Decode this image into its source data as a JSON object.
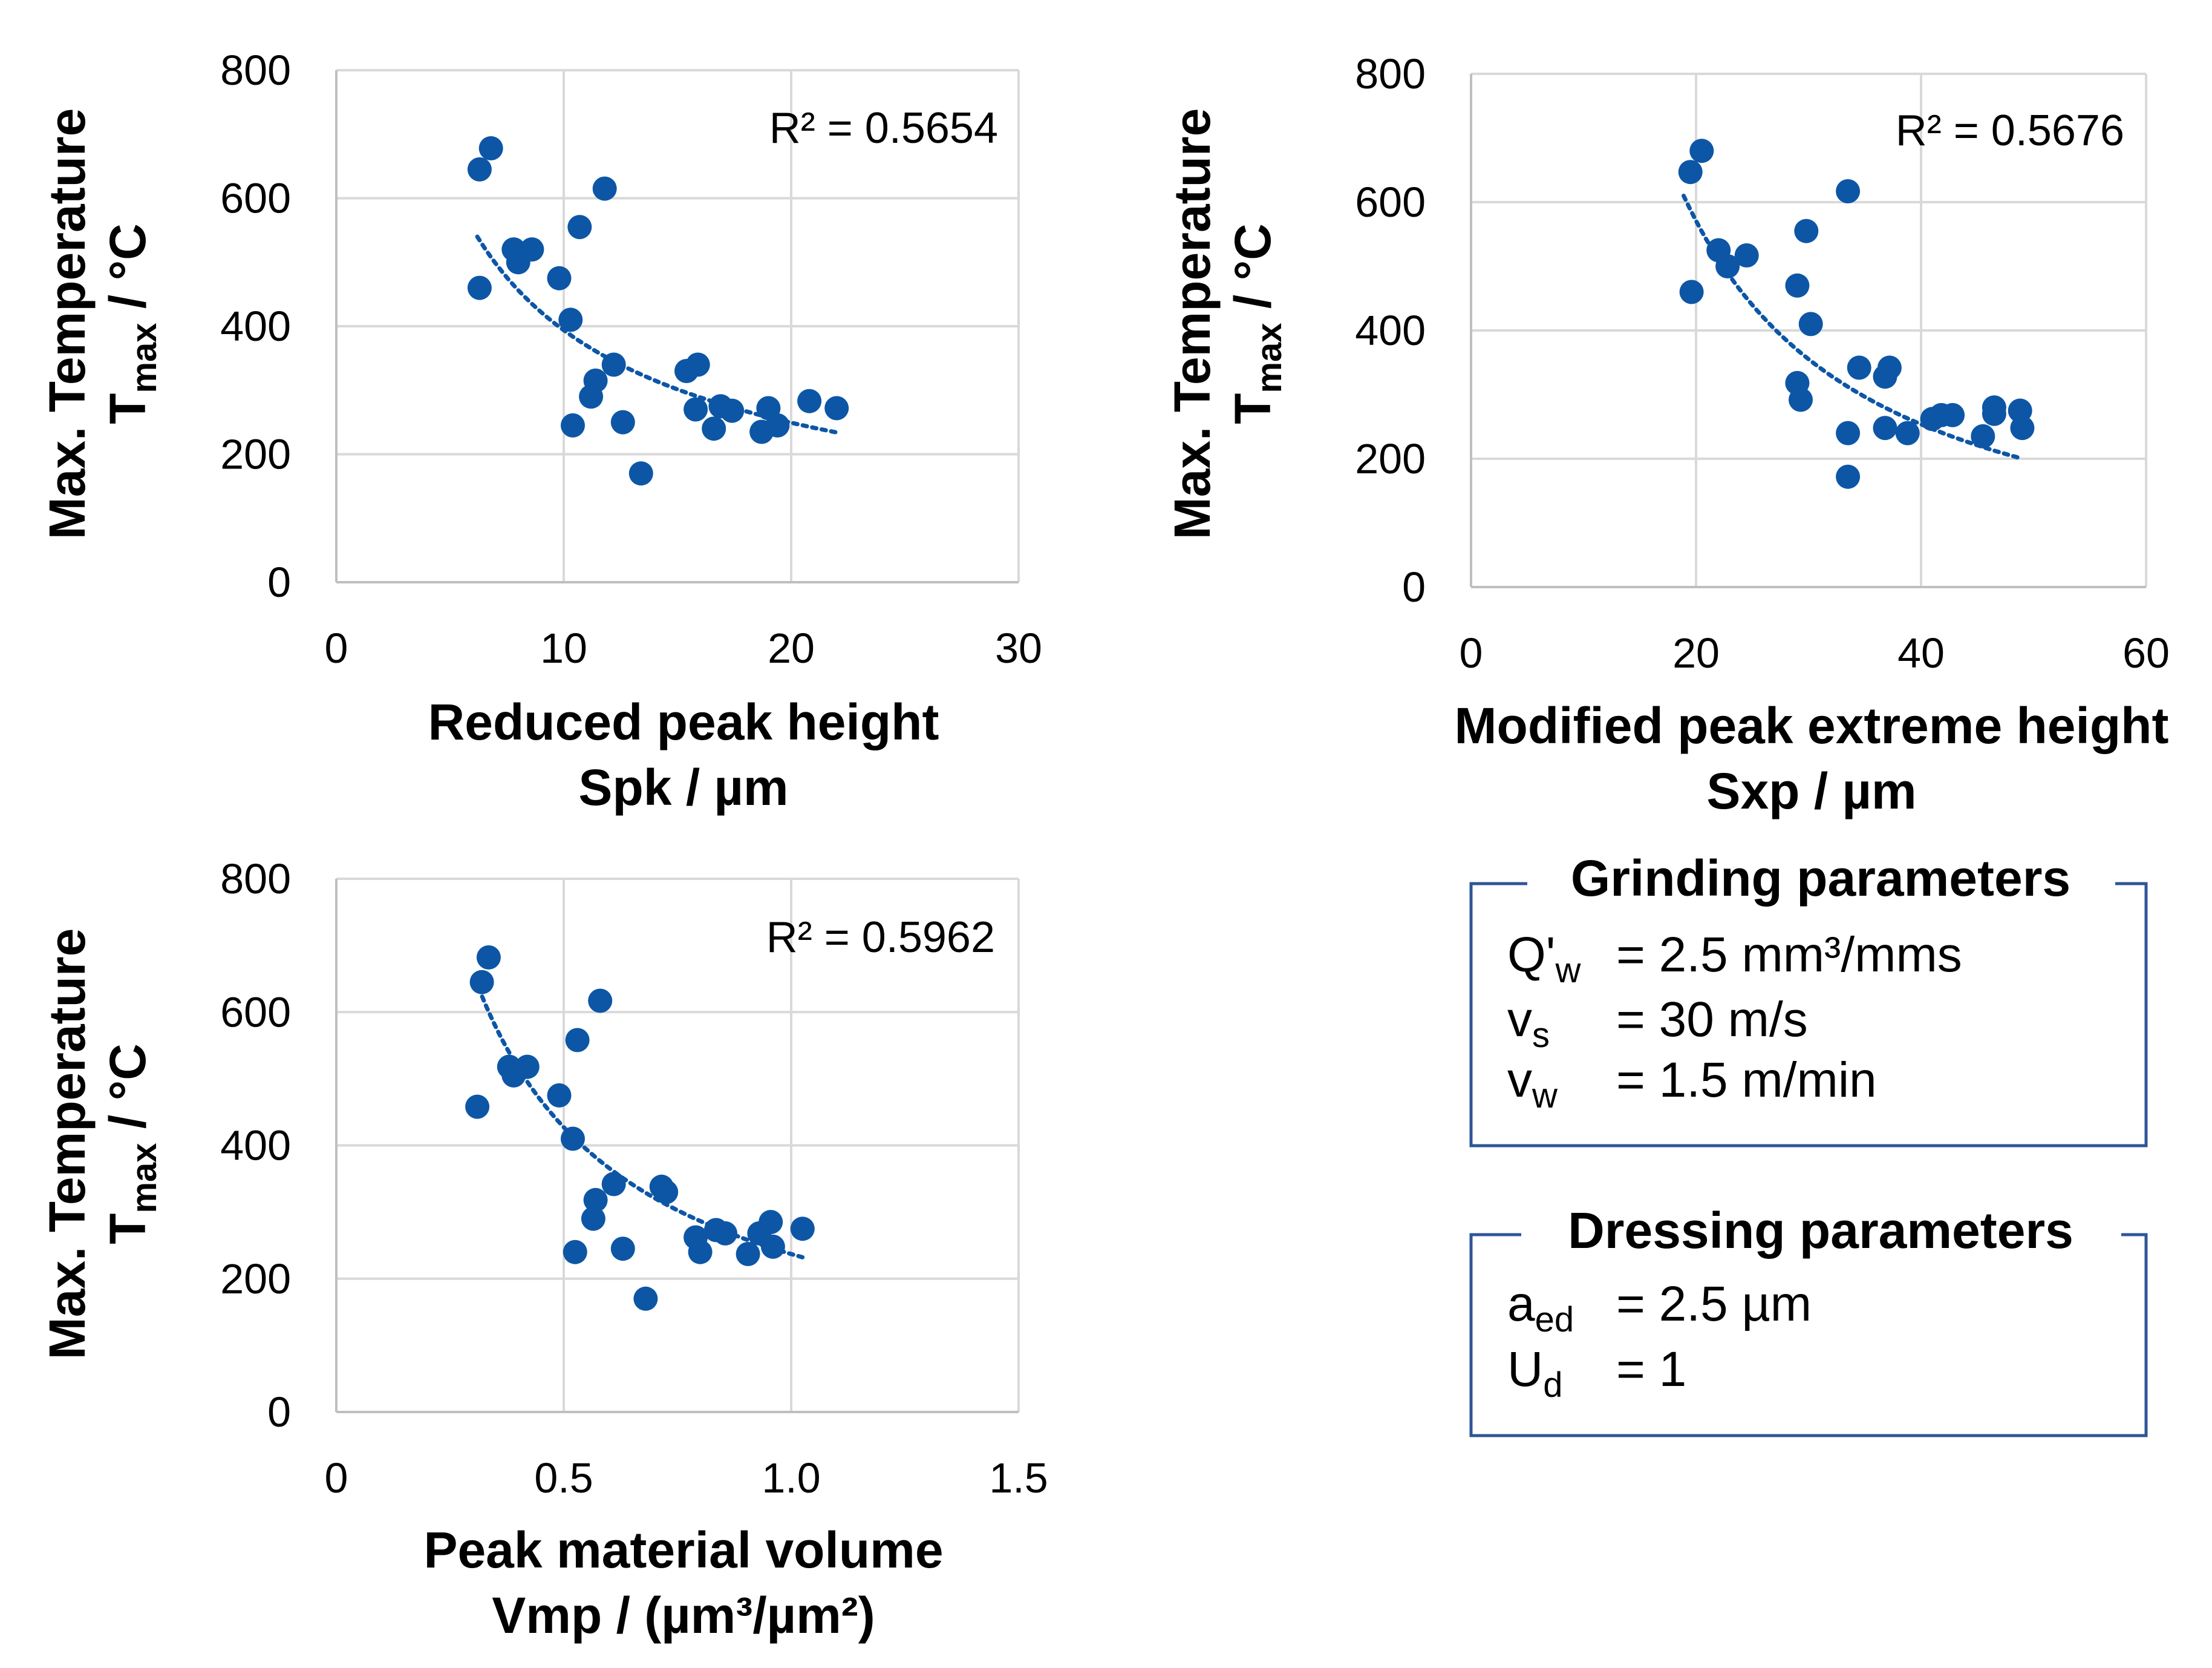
{
  "chart_data": [
    {
      "type": "scatter",
      "id": "spk",
      "title": "",
      "xlabel": "Reduced peak height",
      "xunit": "Spk / µm",
      "ylabel_line1": "Max. Temperature",
      "ylabel_sym": "T",
      "ylabel_sub": "max",
      "ylabel_unit": " / °C",
      "xlim": [
        0,
        30
      ],
      "ylim": [
        0,
        800
      ],
      "xticks": [
        "0",
        "10",
        "20",
        "30"
      ],
      "yticks": [
        "0",
        "200",
        "400",
        "600",
        "800"
      ],
      "grid": true,
      "r2_label": "R² = 0.5654",
      "points": [
        [
          6.3,
          645
        ],
        [
          6.8,
          678
        ],
        [
          6.3,
          460
        ],
        [
          7.8,
          520
        ],
        [
          8.0,
          500
        ],
        [
          8.6,
          520
        ],
        [
          9.8,
          475
        ],
        [
          10.3,
          410
        ],
        [
          10.7,
          555
        ],
        [
          11.8,
          615
        ],
        [
          10.4,
          245
        ],
        [
          11.2,
          290
        ],
        [
          11.4,
          315
        ],
        [
          12.2,
          340
        ],
        [
          12.6,
          250
        ],
        [
          13.4,
          170
        ],
        [
          15.4,
          330
        ],
        [
          15.9,
          340
        ],
        [
          15.8,
          270
        ],
        [
          16.6,
          240
        ],
        [
          16.9,
          275
        ],
        [
          17.4,
          268
        ],
        [
          18.7,
          235
        ],
        [
          19.0,
          272
        ],
        [
          19.4,
          245
        ],
        [
          20.8,
          283
        ],
        [
          22.0,
          272
        ]
      ],
      "trendline": {
        "kind": "power",
        "a": 1800,
        "b": -0.66,
        "x_from": 6.2,
        "x_to": 22.0
      }
    },
    {
      "type": "scatter",
      "id": "sxp",
      "title": "",
      "xlabel": "Modified peak extreme height",
      "xunit": "Sxp / µm",
      "ylabel_line1": "Max. Temperature",
      "ylabel_sym": "T",
      "ylabel_sub": "max",
      "ylabel_unit": " / °C",
      "xlim": [
        0,
        60
      ],
      "ylim": [
        0,
        800
      ],
      "xticks": [
        "0",
        "20",
        "40",
        "60"
      ],
      "yticks": [
        "0",
        "200",
        "400",
        "600",
        "800"
      ],
      "grid": true,
      "r2_label": "R² = 0.5676",
      "points": [
        [
          19.5,
          647
        ],
        [
          20.5,
          680
        ],
        [
          19.6,
          460
        ],
        [
          22.0,
          525
        ],
        [
          22.8,
          500
        ],
        [
          24.5,
          517
        ],
        [
          29.0,
          470
        ],
        [
          29.8,
          555
        ],
        [
          33.5,
          617
        ],
        [
          30.2,
          410
        ],
        [
          29.0,
          318
        ],
        [
          29.3,
          292
        ],
        [
          33.5,
          240
        ],
        [
          33.5,
          172
        ],
        [
          34.5,
          342
        ],
        [
          36.8,
          328
        ],
        [
          37.2,
          342
        ],
        [
          36.8,
          248
        ],
        [
          38.8,
          240
        ],
        [
          41.0,
          262
        ],
        [
          41.8,
          268
        ],
        [
          42.8,
          268
        ],
        [
          45.5,
          235
        ],
        [
          46.5,
          270
        ],
        [
          46.5,
          280
        ],
        [
          48.8,
          275
        ],
        [
          49.0,
          248
        ]
      ],
      "trendline": {
        "kind": "power",
        "a": 19000,
        "b": -1.17,
        "x_from": 18.9,
        "x_to": 49.0
      }
    },
    {
      "type": "scatter",
      "id": "vmp",
      "title": "",
      "xlabel": "Peak material volume",
      "xunit": "Vmp  / (µm³/µm²)",
      "ylabel_line1": "Max. Temperature",
      "ylabel_sym": "T",
      "ylabel_sub": "max",
      "ylabel_unit": " / °C",
      "xlim": [
        0,
        1.5
      ],
      "ylim": [
        0,
        800
      ],
      "xticks": [
        "0",
        "0.5",
        "1.0",
        "1.5"
      ],
      "yticks": [
        "0",
        "200",
        "400",
        "600",
        "800"
      ],
      "grid": true,
      "r2_label": "R² = 0.5962",
      "points": [
        [
          0.32,
          645
        ],
        [
          0.335,
          682
        ],
        [
          0.31,
          458
        ],
        [
          0.38,
          518
        ],
        [
          0.39,
          505
        ],
        [
          0.42,
          518
        ],
        [
          0.49,
          475
        ],
        [
          0.52,
          410
        ],
        [
          0.53,
          558
        ],
        [
          0.58,
          617
        ],
        [
          0.525,
          240
        ],
        [
          0.565,
          290
        ],
        [
          0.57,
          318
        ],
        [
          0.61,
          342
        ],
        [
          0.63,
          245
        ],
        [
          0.68,
          170
        ],
        [
          0.715,
          338
        ],
        [
          0.725,
          330
        ],
        [
          0.79,
          262
        ],
        [
          0.8,
          240
        ],
        [
          0.835,
          273
        ],
        [
          0.855,
          268
        ],
        [
          0.905,
          237
        ],
        [
          0.93,
          268
        ],
        [
          0.955,
          285
        ],
        [
          0.96,
          248
        ],
        [
          1.025,
          275
        ]
      ],
      "trendline": {
        "kind": "power",
        "a": 237,
        "b": -0.85,
        "x_from": 0.305,
        "x_to": 1.03
      }
    }
  ],
  "grinding": {
    "title": "Grinding parameters",
    "rows": [
      {
        "sym": "Q'",
        "sub": "w",
        "value": "= 2.5 mm³/mms"
      },
      {
        "sym": "v",
        "sub": "s",
        "value": "= 30 m/s"
      },
      {
        "sym": "v",
        "sub": "w",
        "value": "= 1.5 m/min"
      }
    ]
  },
  "dressing": {
    "title": "Dressing parameters",
    "rows": [
      {
        "sym": "a",
        "sub": "ed",
        "value": "= 2.5 µm"
      },
      {
        "sym": "U",
        "sub": "d",
        "value": "= 1"
      }
    ]
  },
  "colors": {
    "marker": "#0D56A6",
    "grid": "#D9D9D9",
    "axis": "#BFBFBF",
    "box_border": "#2F5597"
  }
}
